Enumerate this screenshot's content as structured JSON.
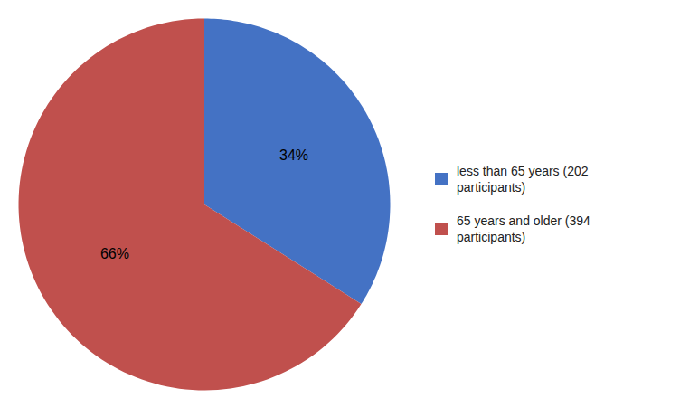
{
  "chart_data": {
    "type": "pie",
    "categories": [
      "less than 65 years (202\nparticipants)",
      "65 years and older (394\nparticipants)"
    ],
    "values": [
      34,
      66
    ],
    "value_labels": [
      "34%",
      "66%"
    ],
    "colors": [
      "#4472C4",
      "#C0504D"
    ],
    "data_labels": true,
    "legend": "right"
  }
}
